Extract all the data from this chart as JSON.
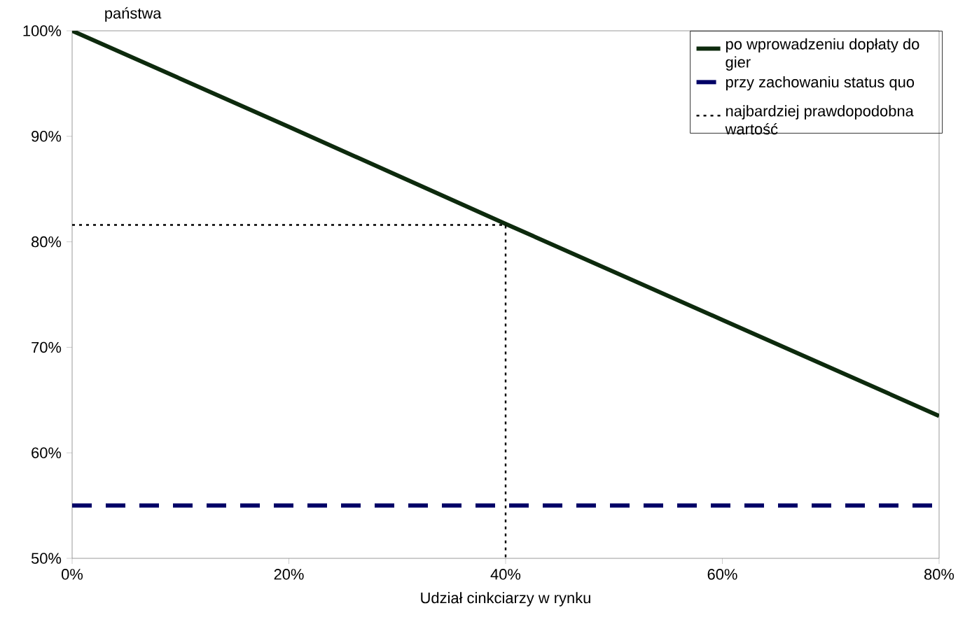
{
  "chart_data": {
    "type": "line",
    "xlabel": "Udział cinkciarzy w rynku",
    "ylabel": "państwa",
    "xlim": [
      0,
      80
    ],
    "ylim": [
      50,
      100
    ],
    "xticks": [
      {
        "value": 0,
        "label": "0%"
      },
      {
        "value": 20,
        "label": "20%"
      },
      {
        "value": 40,
        "label": "40%"
      },
      {
        "value": 60,
        "label": "60%"
      },
      {
        "value": 80,
        "label": "80%"
      }
    ],
    "yticks": [
      {
        "value": 50,
        "label": "50%"
      },
      {
        "value": 60,
        "label": "60%"
      },
      {
        "value": 70,
        "label": "70%"
      },
      {
        "value": 80,
        "label": "80%"
      },
      {
        "value": 90,
        "label": "90%"
      },
      {
        "value": 100,
        "label": "100%"
      }
    ],
    "legend": "top right",
    "grid": false,
    "series": [
      {
        "name": "po wprowadzeniu dopłaty do gier",
        "color": "#0d2a0d",
        "line_style": "solid",
        "x": [
          0,
          20,
          40,
          60,
          80
        ],
        "values": [
          100,
          90.9,
          81.7,
          72.6,
          63.5
        ]
      },
      {
        "name": "przy zachowaniu status quo",
        "color": "#000066",
        "line_style": "dashed",
        "x": [
          0,
          80
        ],
        "values": [
          55,
          55
        ]
      },
      {
        "name": "najbardziej prawdopodobna wartość",
        "color": "#000000",
        "line_style": "dotted",
        "x": [
          0,
          40,
          40
        ],
        "values": [
          81.6,
          81.6,
          50
        ]
      }
    ]
  }
}
